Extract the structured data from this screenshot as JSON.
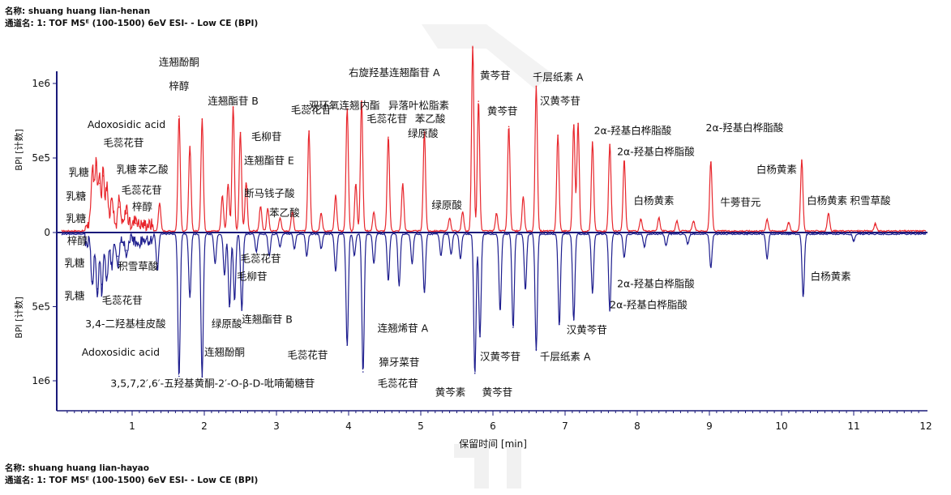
{
  "header_top": {
    "name_label": "名称:",
    "name_value": "shuang huang lian-henan",
    "channel_label": "通道名:",
    "channel_value": "1: TOF MSᴱ (100-1500) 6eV ESI- - Low CE (BPI)"
  },
  "header_bottom": {
    "name_label": "名称:",
    "name_value": "shuang huang lian-hayao",
    "channel_label": "通道名:",
    "channel_value": "1: TOF MSᴱ (100-1500) 6eV ESI- - Low CE (BPI)"
  },
  "colors": {
    "top_trace": "#e8262c",
    "bottom_trace": "#1f1f8f",
    "axis": "#1a1a7a"
  },
  "chart_data": {
    "type": "line",
    "xlabel": "保留时间 [min]",
    "ylabel_top": "BPI [计数]",
    "ylabel_bottom": "BPI [计数]",
    "xlim": [
      0,
      12
    ],
    "ylim_top": [
      0,
      1200000
    ],
    "ylim_bottom": [
      0,
      1200000
    ],
    "xticks": [
      "1",
      "2",
      "3",
      "4",
      "5",
      "6",
      "7",
      "8",
      "9",
      "10",
      "11",
      "12"
    ],
    "yticks_top": [
      {
        "v": 1000000,
        "label": "1e6"
      },
      {
        "v": 500000,
        "label": "5e5"
      },
      {
        "v": 0,
        "label": "0"
      }
    ],
    "yticks_bottom": [
      {
        "v": 500000,
        "label": "5e5"
      },
      {
        "v": 1000000,
        "label": "1e6"
      }
    ],
    "series": [
      {
        "peaks": [
          [
            0.45,
            410000
          ],
          [
            0.5,
            450000
          ],
          [
            0.55,
            330000
          ],
          [
            0.6,
            380000
          ],
          [
            0.65,
            280000
          ],
          [
            0.72,
            220000
          ],
          [
            0.82,
            170000
          ],
          [
            0.92,
            130000
          ],
          [
            1.05,
            60000
          ],
          [
            1.38,
            190000
          ],
          [
            1.65,
            780000
          ],
          [
            1.8,
            570000
          ],
          [
            1.97,
            760000
          ],
          [
            2.25,
            240000
          ],
          [
            2.33,
            320000
          ],
          [
            2.4,
            840000
          ],
          [
            2.5,
            670000
          ],
          [
            2.58,
            330000
          ],
          [
            2.78,
            170000
          ],
          [
            2.88,
            150000
          ],
          [
            3.05,
            90000
          ],
          [
            3.22,
            130000
          ],
          [
            3.45,
            680000
          ],
          [
            3.62,
            120000
          ],
          [
            3.82,
            240000
          ],
          [
            3.98,
            830000
          ],
          [
            4.1,
            320000
          ],
          [
            4.18,
            880000
          ],
          [
            4.35,
            130000
          ],
          [
            4.55,
            640000
          ],
          [
            4.75,
            320000
          ],
          [
            5.05,
            670000
          ],
          [
            5.4,
            90000
          ],
          [
            5.58,
            130000
          ],
          [
            5.72,
            1240000
          ],
          [
            5.8,
            880000
          ],
          [
            6.05,
            120000
          ],
          [
            6.22,
            710000
          ],
          [
            6.42,
            230000
          ],
          [
            6.6,
            980000
          ],
          [
            6.9,
            650000
          ],
          [
            7.12,
            720000
          ],
          [
            7.18,
            730000
          ],
          [
            7.38,
            600000
          ],
          [
            7.62,
            590000
          ],
          [
            7.82,
            480000
          ],
          [
            8.05,
            80000
          ],
          [
            8.3,
            90000
          ],
          [
            8.55,
            70000
          ],
          [
            8.78,
            70000
          ],
          [
            9.02,
            470000
          ],
          [
            9.8,
            80000
          ],
          [
            10.1,
            60000
          ],
          [
            10.28,
            480000
          ],
          [
            10.65,
            120000
          ],
          [
            11.3,
            50000
          ]
        ]
      },
      {
        "peaks": [
          [
            0.45,
            330000
          ],
          [
            0.52,
            380000
          ],
          [
            0.58,
            350000
          ],
          [
            0.65,
            300000
          ],
          [
            0.72,
            200000
          ],
          [
            0.8,
            160000
          ],
          [
            0.92,
            120000
          ],
          [
            1.35,
            250000
          ],
          [
            1.65,
            970000
          ],
          [
            1.8,
            430000
          ],
          [
            1.97,
            970000
          ],
          [
            2.15,
            200000
          ],
          [
            2.28,
            280000
          ],
          [
            2.35,
            500000
          ],
          [
            2.42,
            450000
          ],
          [
            2.52,
            520000
          ],
          [
            2.72,
            120000
          ],
          [
            2.9,
            150000
          ],
          [
            3.05,
            90000
          ],
          [
            3.25,
            100000
          ],
          [
            3.42,
            150000
          ],
          [
            3.62,
            100000
          ],
          [
            3.82,
            250000
          ],
          [
            3.98,
            760000
          ],
          [
            4.08,
            150000
          ],
          [
            4.2,
            940000
          ],
          [
            4.35,
            200000
          ],
          [
            4.55,
            320000
          ],
          [
            4.7,
            350000
          ],
          [
            4.88,
            200000
          ],
          [
            5.05,
            400000
          ],
          [
            5.28,
            150000
          ],
          [
            5.42,
            140000
          ],
          [
            5.55,
            170000
          ],
          [
            5.75,
            950000
          ],
          [
            5.82,
            700000
          ],
          [
            6.1,
            520000
          ],
          [
            6.28,
            640000
          ],
          [
            6.45,
            380000
          ],
          [
            6.6,
            790000
          ],
          [
            6.92,
            620000
          ],
          [
            7.12,
            590000
          ],
          [
            7.38,
            400000
          ],
          [
            7.62,
            520000
          ],
          [
            7.82,
            160000
          ],
          [
            8.1,
            90000
          ],
          [
            8.4,
            80000
          ],
          [
            8.7,
            70000
          ],
          [
            9.02,
            230000
          ],
          [
            9.8,
            170000
          ],
          [
            10.3,
            430000
          ],
          [
            11.0,
            50000
          ]
        ]
      }
    ],
    "annotations_top": [
      {
        "t": "连翘酚酮",
        "x": 1.65,
        "y": 1120000,
        "ta": "middle"
      },
      {
        "t": "梓醇",
        "x": 1.65,
        "y": 960000,
        "ta": "middle"
      },
      {
        "t": "连翘酯苷 B",
        "x": 2.4,
        "y": 860000,
        "ta": "middle"
      },
      {
        "t": "Adoxosidic acid",
        "x": 0.38,
        "y": 700000,
        "ta": "start"
      },
      {
        "t": "毛蕊花苷",
        "x": 0.6,
        "y": 580000,
        "ta": "start"
      },
      {
        "t": "毛柳苷",
        "x": 2.65,
        "y": 620000,
        "ta": "start"
      },
      {
        "t": "乳糖",
        "x": 0.78,
        "y": 400000,
        "ta": "start"
      },
      {
        "t": "苯乙酸",
        "x": 1.08,
        "y": 400000,
        "ta": "start"
      },
      {
        "t": "乳糖",
        "x": 0.12,
        "y": 380000,
        "ta": "start"
      },
      {
        "t": "连翘酯苷 E",
        "x": 2.55,
        "y": 460000,
        "ta": "start"
      },
      {
        "t": "乳糖",
        "x": 0.08,
        "y": 220000,
        "ta": "start"
      },
      {
        "t": "毛蕊花苷",
        "x": 0.85,
        "y": 260000,
        "ta": "start"
      },
      {
        "t": "断马钱子酸",
        "x": 2.55,
        "y": 240000,
        "ta": "start"
      },
      {
        "t": "梓醇",
        "x": 1.0,
        "y": 150000,
        "ta": "start"
      },
      {
        "t": "苯乙酸",
        "x": 2.9,
        "y": 110000,
        "ta": "start"
      },
      {
        "t": "乳糖",
        "x": 0.08,
        "y": 70000,
        "ta": "start"
      },
      {
        "t": "右旋羟基连翘酯苷 A",
        "x": 4.0,
        "y": 1050000,
        "ta": "start"
      },
      {
        "t": "双环氧连翘内酯",
        "x": 3.45,
        "y": 830000,
        "ta": "start"
      },
      {
        "t": "异落叶松脂素",
        "x": 4.55,
        "y": 830000,
        "ta": "start"
      },
      {
        "t": "毛蕊花苷",
        "x": 3.2,
        "y": 800000,
        "ta": "start"
      },
      {
        "t": "毛蕊花苷",
        "x": 4.25,
        "y": 740000,
        "ta": "start"
      },
      {
        "t": "苯乙酸",
        "x": 4.92,
        "y": 740000,
        "ta": "start"
      },
      {
        "t": "绿原酸",
        "x": 4.82,
        "y": 640000,
        "ta": "start"
      },
      {
        "t": "绿原酸",
        "x": 5.15,
        "y": 160000,
        "ta": "start"
      },
      {
        "t": "黄芩苷",
        "x": 5.82,
        "y": 1030000,
        "ta": "start"
      },
      {
        "t": "黄芩苷",
        "x": 5.92,
        "y": 790000,
        "ta": "start"
      },
      {
        "t": "千层纸素 A",
        "x": 6.55,
        "y": 1020000,
        "ta": "start"
      },
      {
        "t": "汉黄芩苷",
        "x": 6.65,
        "y": 860000,
        "ta": "start"
      },
      {
        "t": "2α-羟基白桦脂酸",
        "x": 7.4,
        "y": 660000,
        "ta": "start"
      },
      {
        "t": "2α-羟基白桦脂酸",
        "x": 8.95,
        "y": 680000,
        "ta": "start"
      },
      {
        "t": "2α-羟基白桦脂酸",
        "x": 7.72,
        "y": 520000,
        "ta": "start"
      },
      {
        "t": "白杨黄素",
        "x": 9.65,
        "y": 400000,
        "ta": "start"
      },
      {
        "t": "白杨黄素",
        "x": 7.95,
        "y": 190000,
        "ta": "start"
      },
      {
        "t": "牛蒡苷元",
        "x": 9.15,
        "y": 180000,
        "ta": "start"
      },
      {
        "t": "白杨黄素",
        "x": 10.35,
        "y": 190000,
        "ta": "start"
      },
      {
        "t": "积雪草酸",
        "x": 10.95,
        "y": 190000,
        "ta": "start"
      }
    ],
    "annotations_bottom": [
      {
        "t": "梓醇",
        "x": 0.1,
        "y": 80000,
        "ta": "start"
      },
      {
        "t": "乳糖",
        "x": 0.06,
        "y": 230000,
        "ta": "start"
      },
      {
        "t": "积雪草酸",
        "x": 0.8,
        "y": 250000,
        "ta": "start"
      },
      {
        "t": "毛蕊花苷",
        "x": 2.5,
        "y": 200000,
        "ta": "start"
      },
      {
        "t": "毛柳苷",
        "x": 2.45,
        "y": 320000,
        "ta": "start"
      },
      {
        "t": "乳糖",
        "x": 0.06,
        "y": 450000,
        "ta": "start"
      },
      {
        "t": "毛蕊花苷",
        "x": 0.58,
        "y": 480000,
        "ta": "start"
      },
      {
        "t": "3,4-二羟基桂皮酸",
        "x": 0.35,
        "y": 640000,
        "ta": "start"
      },
      {
        "t": "绿原酸",
        "x": 2.1,
        "y": 640000,
        "ta": "start"
      },
      {
        "t": "连翘酯苷 B",
        "x": 2.52,
        "y": 610000,
        "ta": "start"
      },
      {
        "t": "Adoxosidic acid",
        "x": 0.3,
        "y": 830000,
        "ta": "start"
      },
      {
        "t": "连翘酚酮",
        "x": 2.0,
        "y": 830000,
        "ta": "start"
      },
      {
        "t": "毛蕊花苷",
        "x": 3.15,
        "y": 850000,
        "ta": "start"
      },
      {
        "t": "连翘烯苷 A",
        "x": 4.4,
        "y": 670000,
        "ta": "start"
      },
      {
        "t": "獐牙菜苷",
        "x": 4.42,
        "y": 900000,
        "ta": "start"
      },
      {
        "t": "3,5,7,2′,6′-五羟基黄酮-2′-O-β-D-吡喃葡糖苷",
        "x": 0.7,
        "y": 1040000,
        "ta": "start"
      },
      {
        "t": "毛蕊花苷",
        "x": 4.4,
        "y": 1040000,
        "ta": "start"
      },
      {
        "t": "黄芩素",
        "x": 5.2,
        "y": 1100000,
        "ta": "start"
      },
      {
        "t": "黄芩苷",
        "x": 5.85,
        "y": 1100000,
        "ta": "start"
      },
      {
        "t": "汉黄芩苷",
        "x": 5.82,
        "y": 860000,
        "ta": "start"
      },
      {
        "t": "千层纸素 A",
        "x": 6.65,
        "y": 860000,
        "ta": "start"
      },
      {
        "t": "汉黄芩苷",
        "x": 7.02,
        "y": 680000,
        "ta": "start"
      },
      {
        "t": "2α-羟基白桦脂酸",
        "x": 7.72,
        "y": 370000,
        "ta": "start"
      },
      {
        "t": "2α-羟基白桦脂酸",
        "x": 7.62,
        "y": 510000,
        "ta": "start"
      },
      {
        "t": "白杨黄素",
        "x": 10.4,
        "y": 320000,
        "ta": "start"
      }
    ]
  }
}
